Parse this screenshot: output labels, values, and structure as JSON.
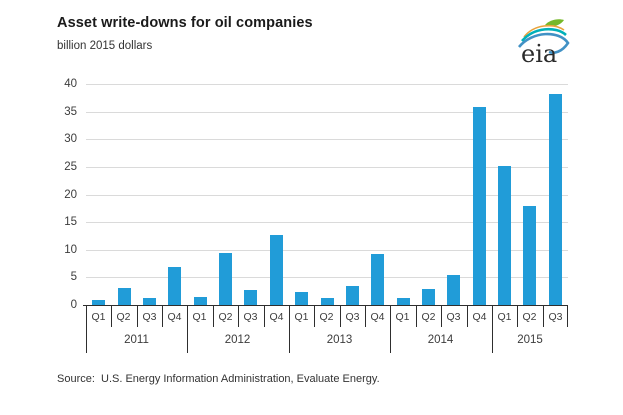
{
  "header": {
    "title": "Asset write-downs for oil companies",
    "subtitle": "billion 2015 dollars",
    "logo_text": "eia"
  },
  "chart_data": {
    "type": "bar",
    "title": "Asset write-downs for oil companies",
    "ylabel": "billion 2015 dollars",
    "ylim": [
      0,
      40
    ],
    "ytick_interval": 5,
    "yticks": [
      0,
      5,
      10,
      15,
      20,
      25,
      30,
      35,
      40
    ],
    "grid": true,
    "legend": "none",
    "bar_color": "#219cd8",
    "categories": [
      "Q1",
      "Q2",
      "Q3",
      "Q4",
      "Q1",
      "Q2",
      "Q3",
      "Q4",
      "Q1",
      "Q2",
      "Q3",
      "Q4",
      "Q1",
      "Q2",
      "Q3",
      "Q4",
      "Q1",
      "Q2",
      "Q3"
    ],
    "year_groups": [
      {
        "label": "2011",
        "quarters": 4
      },
      {
        "label": "2012",
        "quarters": 4
      },
      {
        "label": "2013",
        "quarters": 4
      },
      {
        "label": "2014",
        "quarters": 4
      },
      {
        "label": "2015",
        "quarters": 3
      }
    ],
    "values": [
      0.9,
      3.0,
      1.2,
      6.8,
      1.4,
      9.5,
      2.8,
      12.6,
      2.4,
      1.2,
      3.4,
      9.2,
      1.3,
      2.9,
      5.4,
      35.8,
      25.2,
      18.0,
      38.2
    ]
  },
  "footer": {
    "source": "Source:  U.S. Energy Information Administration, Evaluate Energy."
  }
}
